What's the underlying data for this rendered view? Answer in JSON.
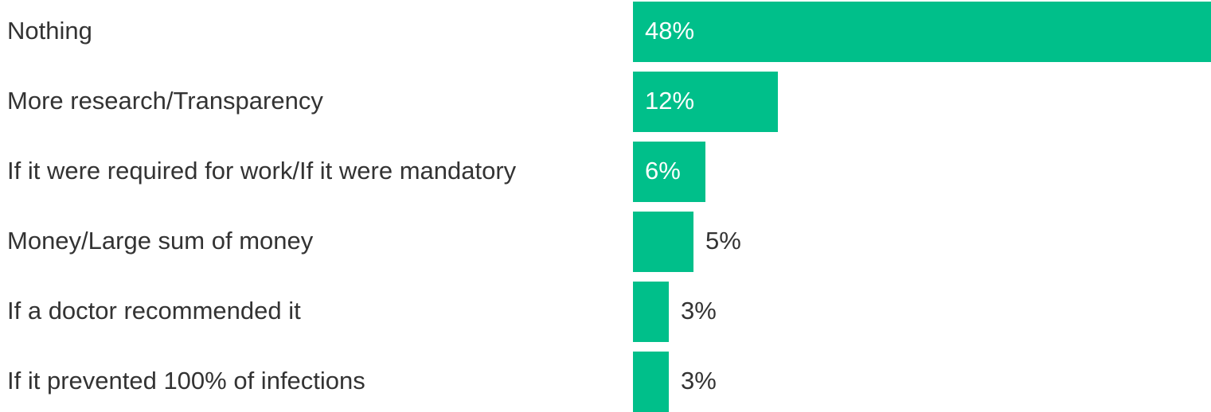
{
  "chart_data": {
    "type": "bar",
    "orientation": "horizontal",
    "categories": [
      "Nothing",
      "More research/Transparency",
      "If it were required for work/If it were mandatory",
      "Money/Large sum of money",
      "If a doctor recommended it",
      "If it prevented 100% of infections"
    ],
    "values": [
      48,
      12,
      6,
      5,
      3,
      3
    ],
    "value_labels": [
      "48%",
      "12%",
      "6%",
      "5%",
      "3%",
      "3%"
    ],
    "value_max": 48,
    "grid": false,
    "legend": "none",
    "colors": {
      "bar": "#00BF8A",
      "label_inside": "#ffffff",
      "label_outside": "#333333",
      "category_text": "#333333"
    }
  }
}
